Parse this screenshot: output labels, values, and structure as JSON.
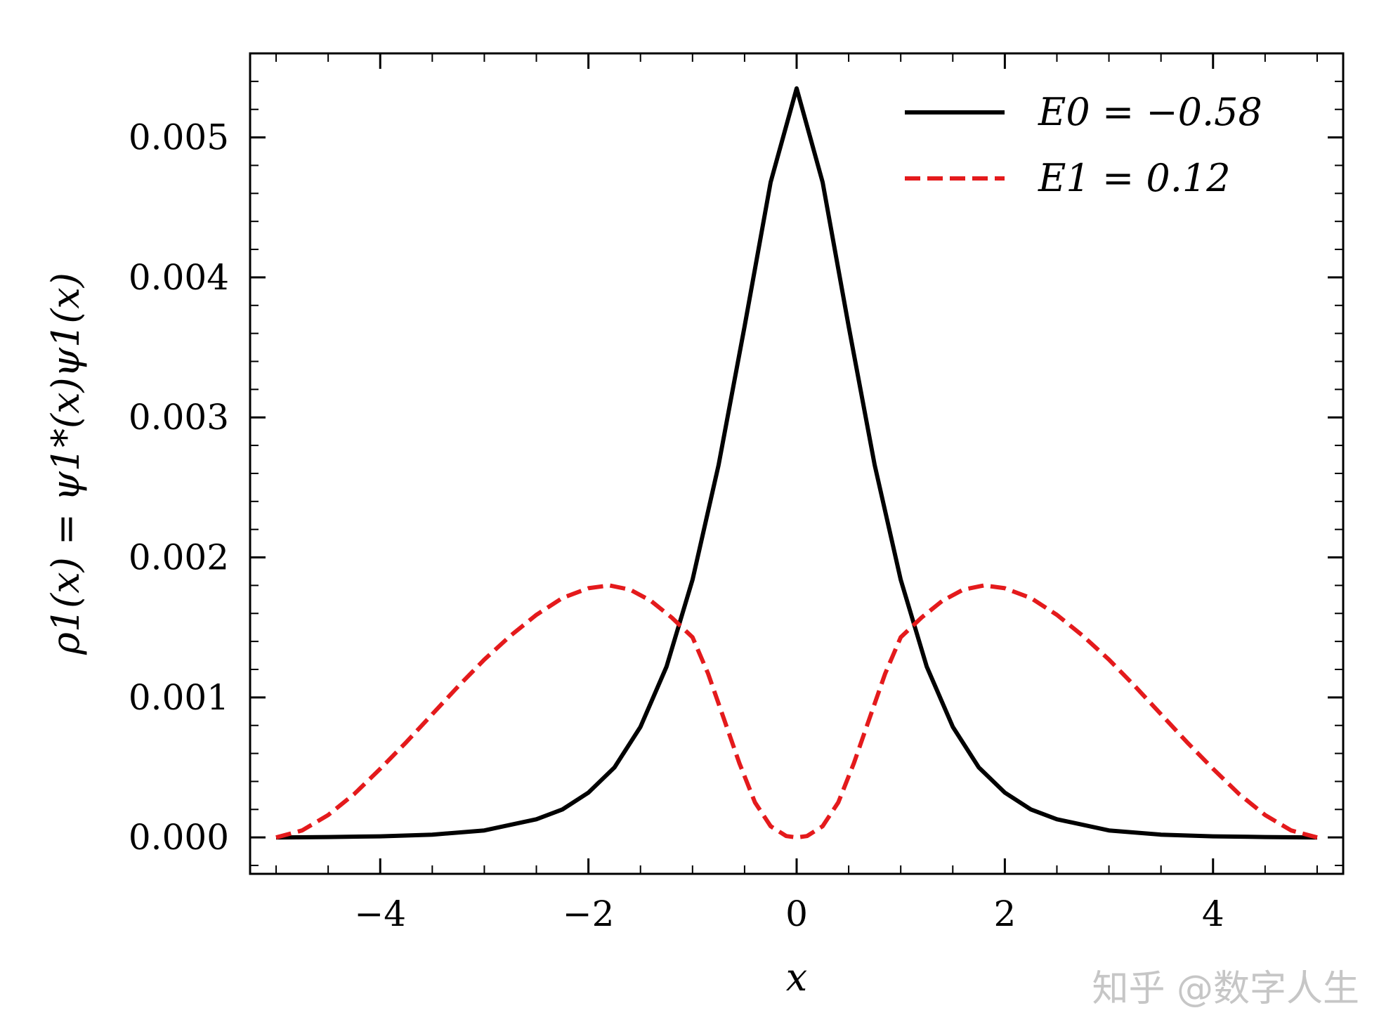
{
  "chart_data": {
    "type": "line",
    "xlabel": "x",
    "ylabel": "ρ1(x) = ψ1*(x)ψ1(x)",
    "xlim": [
      -5.25,
      5.25
    ],
    "ylim": [
      -0.00026,
      0.0056
    ],
    "xticks": [
      -4,
      -2,
      0,
      2,
      4
    ],
    "xtick_labels": [
      "−4",
      "−2",
      "0",
      "2",
      "4"
    ],
    "yticks": [
      0.0,
      0.001,
      0.002,
      0.003,
      0.004,
      0.005
    ],
    "ytick_labels": [
      "0.000",
      "0.001",
      "0.002",
      "0.003",
      "0.004",
      "0.005"
    ],
    "grid": false,
    "legend_position": "top-right",
    "series": [
      {
        "name": "E0 = −0.58",
        "color": "#000000",
        "style": "solid",
        "x": [
          -5.0,
          -4.5,
          -4.0,
          -3.5,
          -3.0,
          -2.5,
          -2.25,
          -2.0,
          -1.75,
          -1.5,
          -1.25,
          -1.0,
          -0.75,
          -0.5,
          -0.25,
          0.0,
          0.25,
          0.5,
          0.75,
          1.0,
          1.25,
          1.5,
          1.75,
          2.0,
          2.25,
          2.5,
          3.0,
          3.5,
          4.0,
          4.5,
          5.0
        ],
        "y": [
          0.0,
          3e-06,
          8e-06,
          2e-05,
          5e-05,
          0.00013,
          0.0002,
          0.00032,
          0.0005,
          0.00079,
          0.00122,
          0.00184,
          0.00266,
          0.00365,
          0.00468,
          0.00535,
          0.00468,
          0.00365,
          0.00266,
          0.00184,
          0.00122,
          0.00079,
          0.0005,
          0.00032,
          0.0002,
          0.00013,
          5e-05,
          2e-05,
          8e-06,
          3e-06,
          0.0
        ]
      },
      {
        "name": "E1 = 0.12",
        "color": "#e41a1c",
        "style": "dashed",
        "x": [
          -5.0,
          -4.75,
          -4.5,
          -4.25,
          -4.0,
          -3.75,
          -3.5,
          -3.25,
          -3.0,
          -2.75,
          -2.5,
          -2.25,
          -2.0,
          -1.8,
          -1.6,
          -1.4,
          -1.2,
          -1.0,
          -0.85,
          -0.7,
          -0.55,
          -0.4,
          -0.25,
          -0.1,
          0.0,
          0.1,
          0.25,
          0.4,
          0.55,
          0.7,
          0.85,
          1.0,
          1.2,
          1.4,
          1.6,
          1.8,
          2.0,
          2.25,
          2.5,
          2.75,
          3.0,
          3.25,
          3.5,
          3.75,
          4.0,
          4.25,
          4.5,
          4.75,
          5.0
        ],
        "y": [
          0.0,
          5e-05,
          0.00016,
          0.00031,
          0.00049,
          0.00068,
          0.00088,
          0.00108,
          0.00127,
          0.00144,
          0.00159,
          0.00171,
          0.00178,
          0.0018,
          0.00177,
          0.00169,
          0.00157,
          0.00143,
          0.00117,
          0.00085,
          0.00053,
          0.00025,
          8e-05,
          1e-05,
          0.0,
          1e-05,
          8e-05,
          0.00025,
          0.00053,
          0.00085,
          0.00117,
          0.00143,
          0.00157,
          0.00169,
          0.00177,
          0.0018,
          0.00178,
          0.00171,
          0.00159,
          0.00144,
          0.00127,
          0.00108,
          0.00088,
          0.00068,
          0.00049,
          0.00031,
          0.00016,
          5e-05,
          0.0
        ]
      }
    ]
  },
  "watermark": "知乎 @数字人生"
}
